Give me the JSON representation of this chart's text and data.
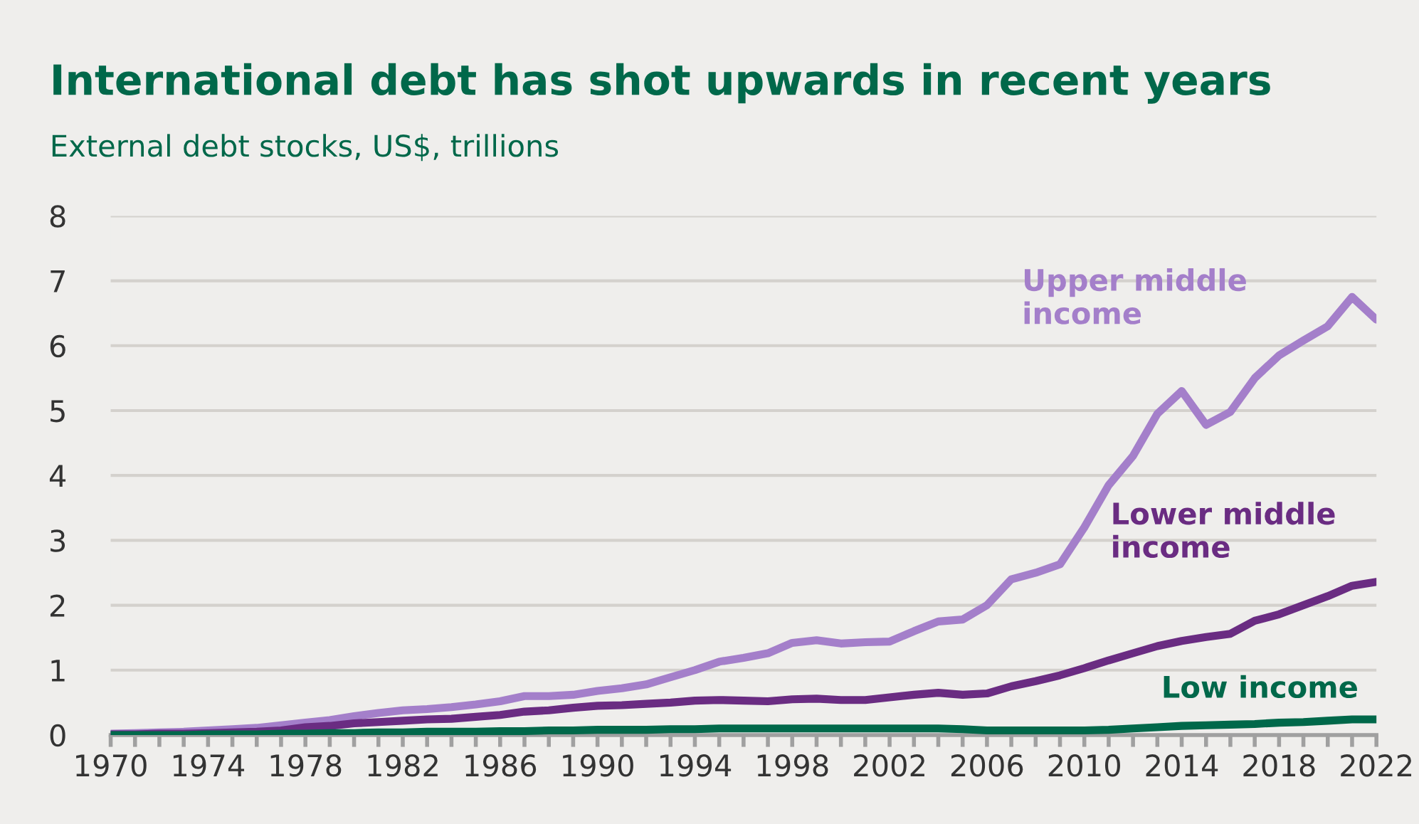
{
  "chart_data": {
    "type": "line",
    "title": "International debt has shot upwards in recent years",
    "subtitle": "External debt stocks, US$, trillions",
    "x": [
      1970,
      1971,
      1972,
      1973,
      1974,
      1975,
      1976,
      1977,
      1978,
      1979,
      1980,
      1981,
      1982,
      1983,
      1984,
      1985,
      1986,
      1987,
      1988,
      1989,
      1990,
      1991,
      1992,
      1993,
      1994,
      1995,
      1996,
      1997,
      1998,
      1999,
      2000,
      2001,
      2002,
      2003,
      2004,
      2005,
      2006,
      2007,
      2008,
      2009,
      2010,
      2011,
      2012,
      2013,
      2014,
      2015,
      2016,
      2017,
      2018,
      2019,
      2020,
      2021,
      2022
    ],
    "series": [
      {
        "name": "Upper middle income",
        "color": "#a47fca",
        "values": [
          0.02,
          0.03,
          0.04,
          0.05,
          0.07,
          0.09,
          0.11,
          0.15,
          0.19,
          0.23,
          0.29,
          0.34,
          0.38,
          0.4,
          0.43,
          0.47,
          0.52,
          0.6,
          0.6,
          0.62,
          0.68,
          0.72,
          0.78,
          0.89,
          1.0,
          1.13,
          1.19,
          1.26,
          1.42,
          1.46,
          1.41,
          1.43,
          1.44,
          1.6,
          1.75,
          1.78,
          2.0,
          2.4,
          2.5,
          2.63,
          3.2,
          3.85,
          4.3,
          4.95,
          5.3,
          4.78,
          4.98,
          5.5,
          5.85,
          6.08,
          6.3,
          6.75,
          6.4
        ]
      },
      {
        "name": "Lower middle income",
        "color": "#6a2c82",
        "values": [
          0.01,
          0.01,
          0.02,
          0.02,
          0.03,
          0.04,
          0.05,
          0.07,
          0.12,
          0.14,
          0.18,
          0.2,
          0.22,
          0.24,
          0.25,
          0.28,
          0.31,
          0.36,
          0.38,
          0.42,
          0.45,
          0.46,
          0.48,
          0.5,
          0.53,
          0.54,
          0.53,
          0.52,
          0.55,
          0.56,
          0.54,
          0.54,
          0.58,
          0.62,
          0.65,
          0.62,
          0.64,
          0.75,
          0.83,
          0.92,
          1.03,
          1.15,
          1.26,
          1.37,
          1.45,
          1.51,
          1.56,
          1.76,
          1.86,
          2.0,
          2.14,
          2.3,
          2.36
        ]
      },
      {
        "name": "Low income",
        "color": "#00684a",
        "values": [
          0.0,
          0.0,
          0.0,
          0.0,
          0.01,
          0.01,
          0.01,
          0.02,
          0.02,
          0.03,
          0.03,
          0.04,
          0.04,
          0.05,
          0.05,
          0.05,
          0.06,
          0.06,
          0.07,
          0.07,
          0.08,
          0.08,
          0.08,
          0.09,
          0.09,
          0.1,
          0.1,
          0.1,
          0.1,
          0.1,
          0.1,
          0.1,
          0.1,
          0.1,
          0.1,
          0.09,
          0.07,
          0.07,
          0.07,
          0.07,
          0.07,
          0.08,
          0.1,
          0.12,
          0.14,
          0.15,
          0.16,
          0.17,
          0.19,
          0.2,
          0.22,
          0.24,
          0.24
        ]
      }
    ],
    "xlim": [
      1970,
      2022
    ],
    "xticks": [
      1970,
      1974,
      1978,
      1982,
      1986,
      1990,
      1994,
      1998,
      2002,
      2006,
      2010,
      2014,
      2018,
      2022
    ],
    "ylim": [
      0,
      8
    ],
    "yticks": [
      0,
      1,
      2,
      3,
      4,
      5,
      6,
      7,
      8
    ],
    "grid": "y",
    "legend": false,
    "line_style": "solid",
    "marker": "none"
  }
}
